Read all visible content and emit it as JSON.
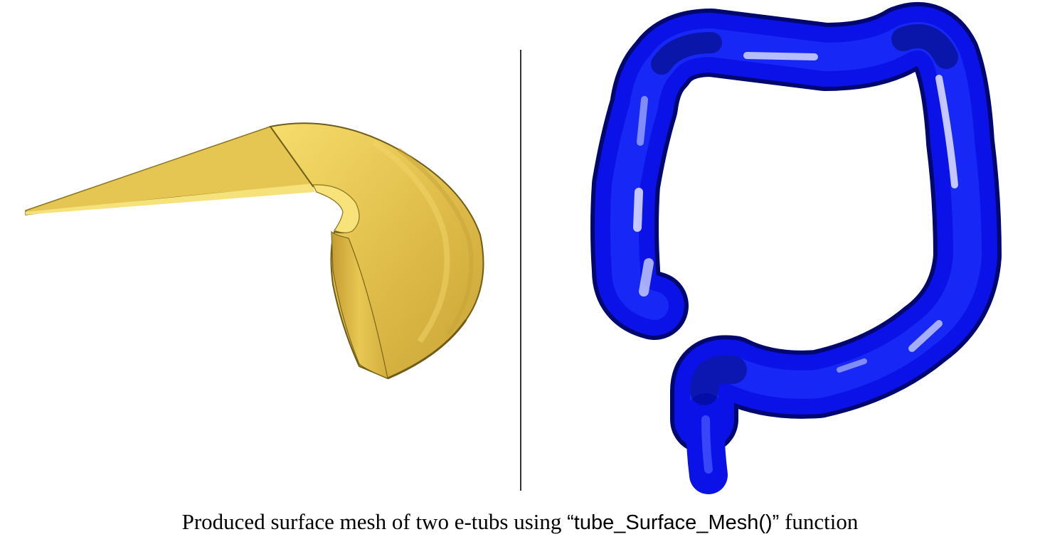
{
  "caption": {
    "prefix": "Produced surface mesh of two e-tubs using  ",
    "code": "“tube_Surface_Mesh()”",
    "suffix": " function"
  },
  "colors": {
    "horn_base": "#e0bd4a",
    "horn_light": "#f6dd6c",
    "horn_dark": "#8a7420",
    "tube_base": "#0a12e8",
    "tube_dark": "#000a7a",
    "tube_highlight": "#ffffff",
    "divider": "#333333"
  },
  "icons": {
    "left_model": "horn-shaped-yellow-mesh",
    "right_model": "blue-colon-tube-mesh"
  }
}
